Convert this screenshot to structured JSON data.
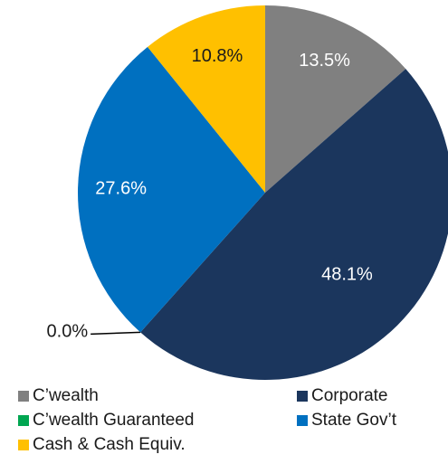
{
  "chart_data": {
    "type": "pie",
    "categories": [
      "C’wealth",
      "Corporate",
      "C’wealth Guaranteed",
      "State Gov’t",
      "Cash & Cash Equiv."
    ],
    "values": [
      13.5,
      48.1,
      0.0,
      27.6,
      10.8
    ],
    "value_labels": [
      "13.5%",
      "48.1%",
      "0.0%",
      "27.6%",
      "10.8%"
    ],
    "colors": [
      "#808080",
      "#1b365d",
      "#00a651",
      "#0070c0",
      "#ffc000"
    ],
    "legend": "bottom"
  }
}
